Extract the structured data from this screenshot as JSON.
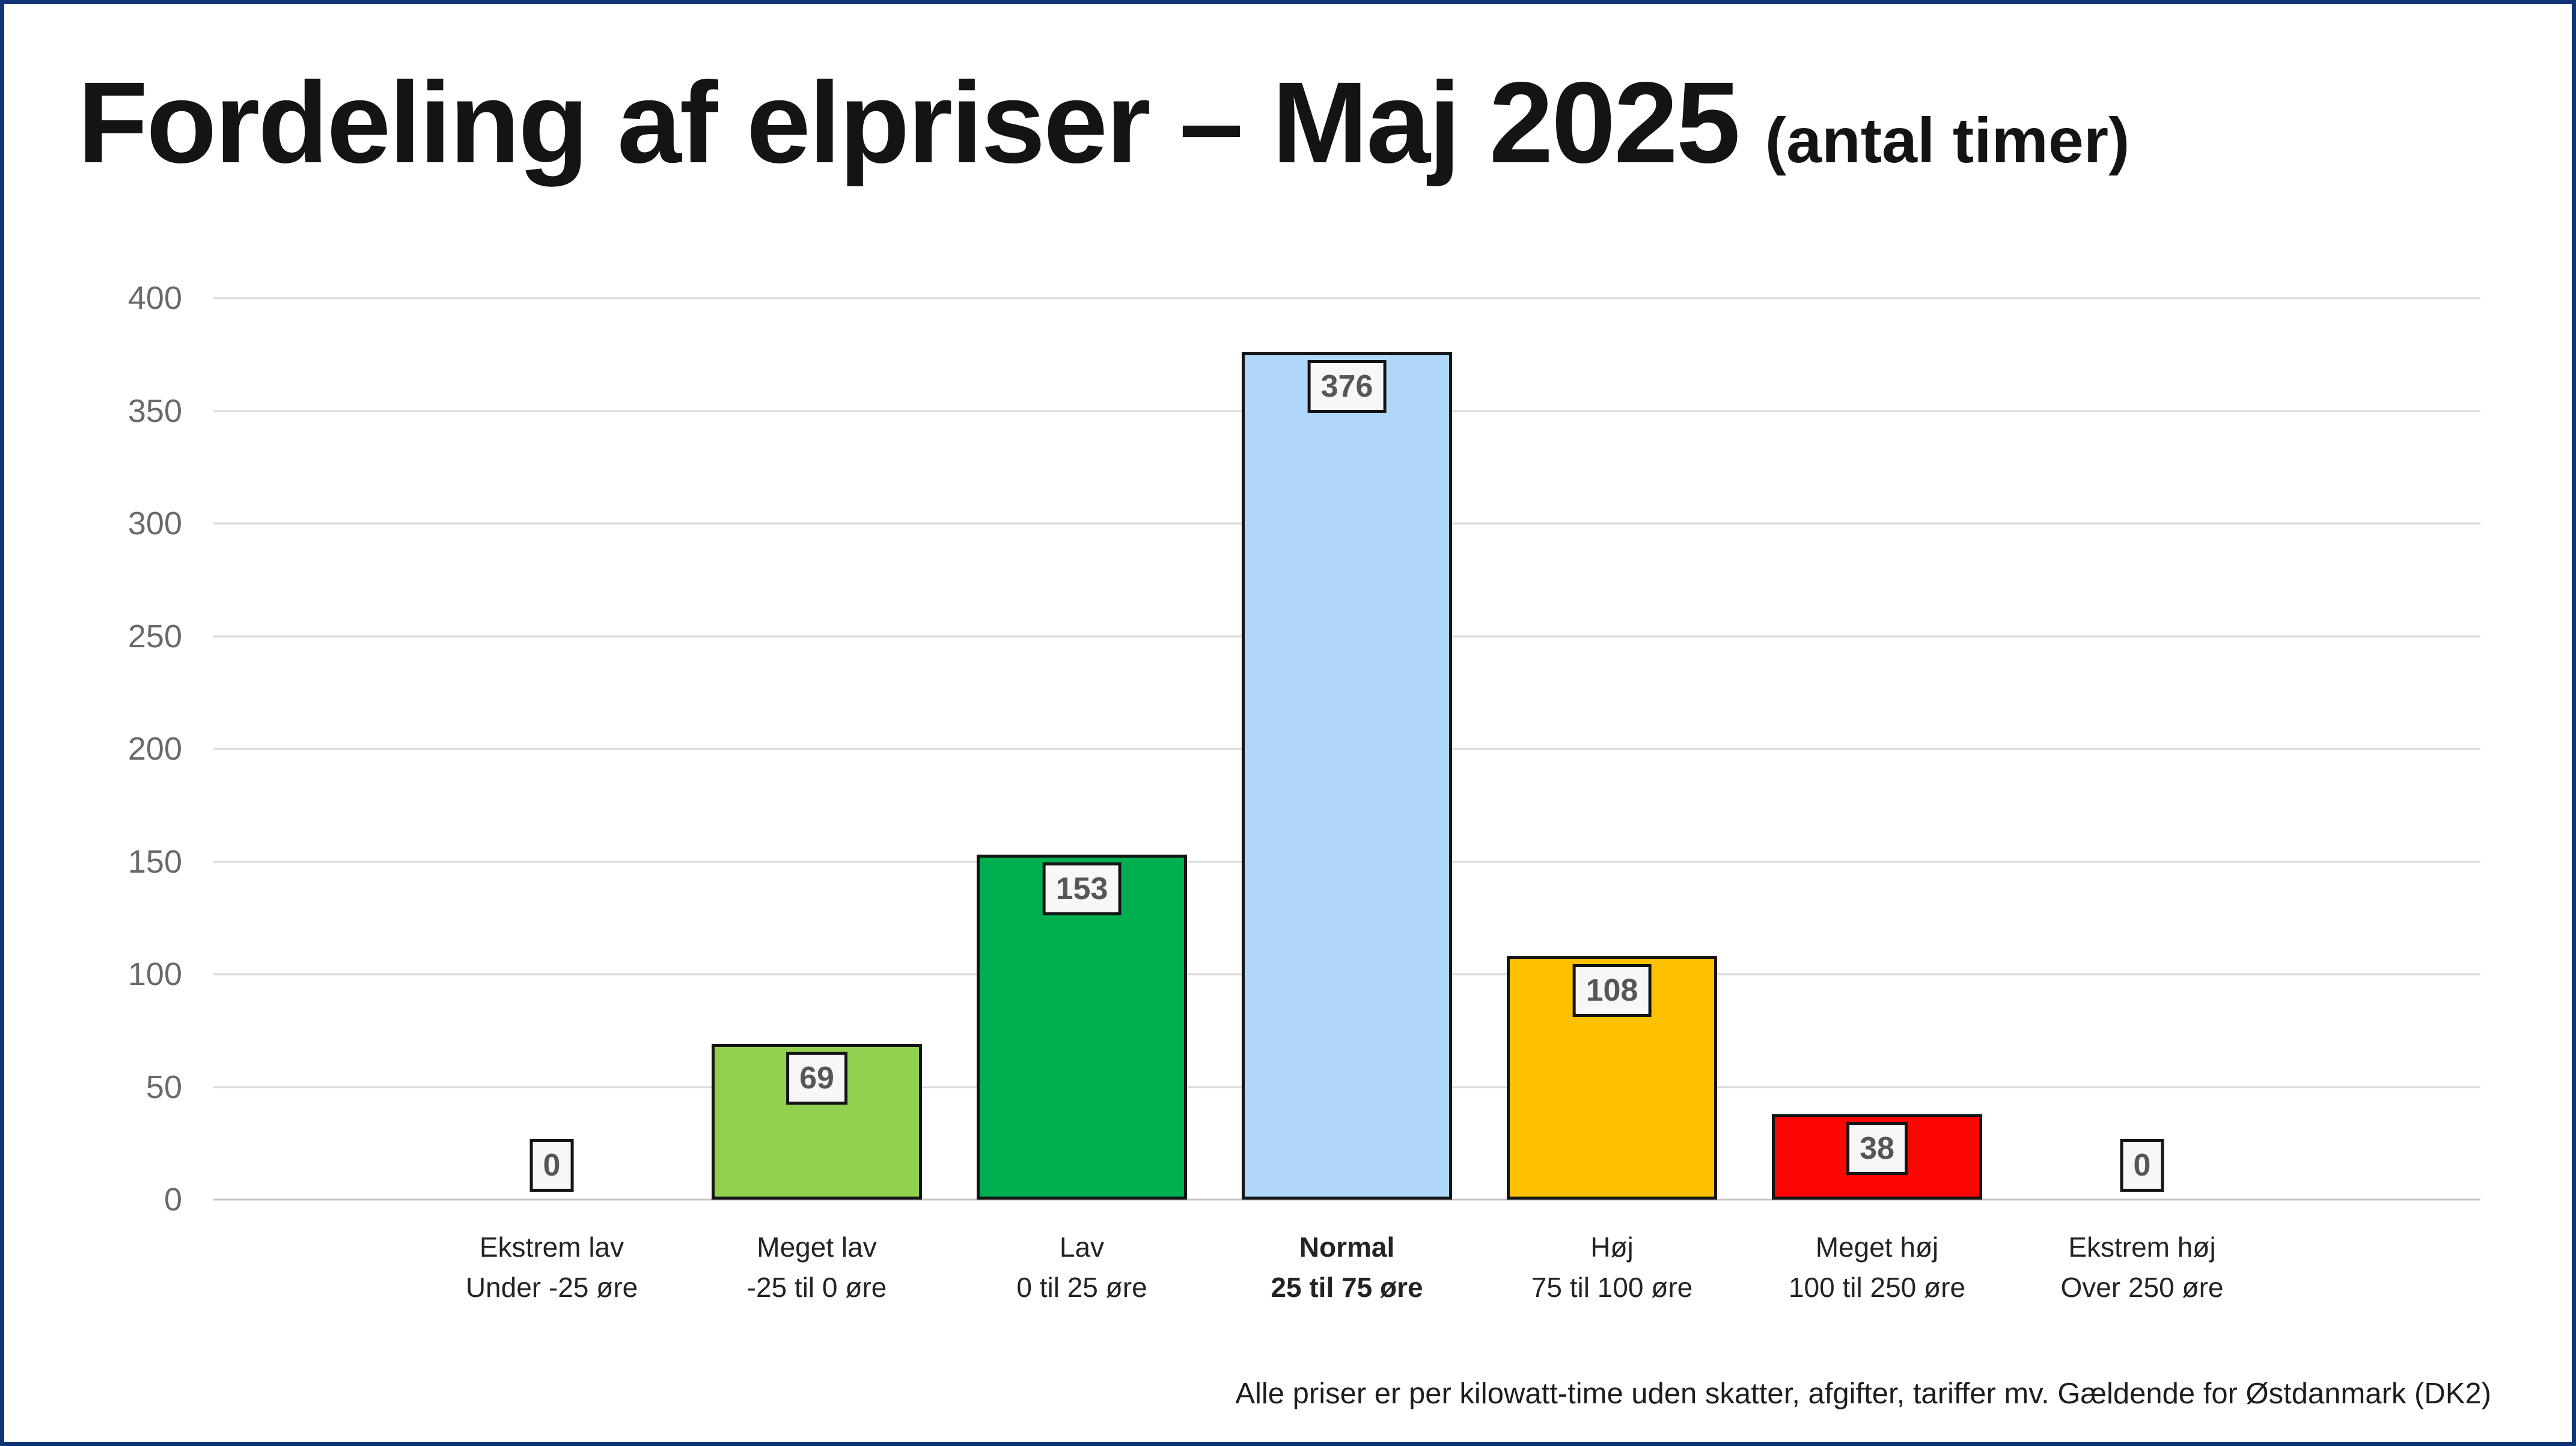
{
  "page": {
    "title": "Fordeling af elpriser – Maj 2025",
    "title_suffix": "(antal timer)",
    "footer": "Alle priser er per kilowatt-time uden skatter, afgifter, tariffer mv. Gældende for Østdanmark (DK2)",
    "frame_border_color": "#0f3475"
  },
  "chart_data": {
    "type": "bar",
    "title": "Fordeling af elpriser – Maj 2025 (antal timer)",
    "xlabel": "",
    "ylabel": "",
    "ylim": [
      0,
      400
    ],
    "grid": true,
    "value_labels": "boxed",
    "y_axis": {
      "min": 0,
      "max": 400,
      "step": 50,
      "ticks": [
        400,
        350,
        300,
        250,
        200,
        150,
        100,
        50,
        0
      ],
      "tick_color": "#6a6a6a",
      "gridline_color": "#d9d9d9"
    },
    "categories": [
      {
        "label": "Ekstrem lav",
        "sublabel": "Under -25 øre",
        "value": 0,
        "color": "#92d050",
        "emphasis": false
      },
      {
        "label": "Meget lav",
        "sublabel": "-25 til 0 øre",
        "value": 69,
        "color": "#92d050",
        "emphasis": false
      },
      {
        "label": "Lav",
        "sublabel": "0 til 25 øre",
        "value": 153,
        "color": "#00b050",
        "emphasis": false
      },
      {
        "label": "Normal",
        "sublabel": "25 til 75 øre",
        "value": 376,
        "color": "#aed7fa",
        "emphasis": true
      },
      {
        "label": "Høj",
        "sublabel": "75 til 100 øre",
        "value": 108,
        "color": "#ffc000",
        "emphasis": false
      },
      {
        "label": "Meget høj",
        "sublabel": "100 til 250 øre",
        "value": 38,
        "color": "#fb0505",
        "emphasis": false
      },
      {
        "label": "Ekstrem høj",
        "sublabel": "Over 250 øre",
        "value": 0,
        "color": "#fb0505",
        "emphasis": false
      }
    ],
    "value_label_style": {
      "background": "#f7f7f7",
      "border_color": "#141414",
      "text_color": "#565656"
    }
  }
}
